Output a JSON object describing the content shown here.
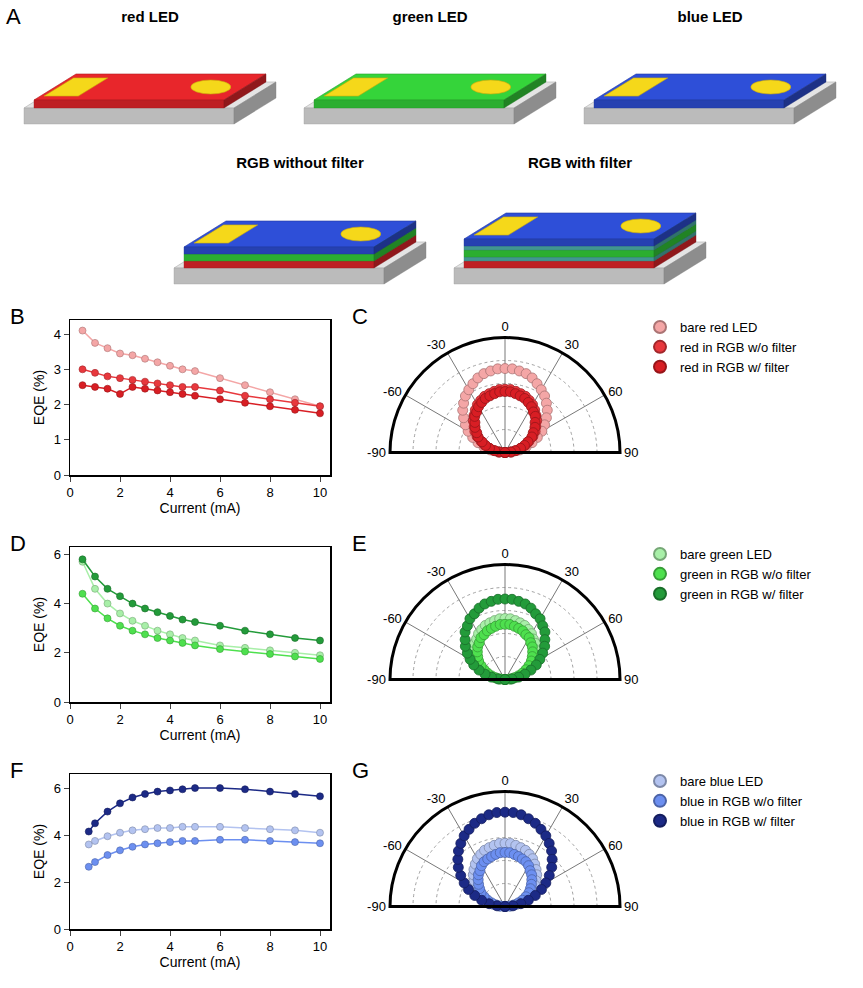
{
  "panel_a": {
    "letter": "A",
    "devices": [
      {
        "label": "red LED",
        "layers": [
          "red"
        ]
      },
      {
        "label": "green LED",
        "layers": [
          "green"
        ]
      },
      {
        "label": "blue LED",
        "layers": [
          "blue"
        ]
      },
      {
        "label": "RGB without filter",
        "layers": [
          "red",
          "green",
          "blue"
        ]
      },
      {
        "label": "RGB with filter",
        "layers": [
          "red",
          "filter",
          "green",
          "filter",
          "blue"
        ]
      }
    ]
  },
  "chart_data": [
    {
      "panel": "B",
      "type": "line",
      "xlabel": "Current (mA)",
      "ylabel": "EQE (%)",
      "x": [
        0.5,
        1,
        1.5,
        2,
        2.5,
        3,
        3.5,
        4,
        4.5,
        5,
        6,
        7,
        8,
        9,
        10
      ],
      "xlim": [
        0,
        10.4
      ],
      "xticks": [
        0,
        2,
        4,
        6,
        8,
        10
      ],
      "ylim": [
        0,
        4.4
      ],
      "yticks": [
        0,
        1,
        2,
        3,
        4
      ],
      "grid": false,
      "marker": "circle",
      "series": [
        {
          "color": "#f4a6a6",
          "values": [
            4.1,
            3.75,
            3.6,
            3.45,
            3.4,
            3.3,
            3.2,
            3.1,
            3.0,
            2.95,
            2.75,
            2.55,
            2.35,
            2.15,
            1.95
          ]
        },
        {
          "color": "#e8383d",
          "values": [
            3.0,
            2.9,
            2.8,
            2.75,
            2.7,
            2.65,
            2.6,
            2.55,
            2.5,
            2.5,
            2.4,
            2.25,
            2.15,
            2.05,
            1.95
          ]
        },
        {
          "color": "#d81e24",
          "values": [
            2.55,
            2.5,
            2.45,
            2.3,
            2.5,
            2.45,
            2.4,
            2.35,
            2.3,
            2.25,
            2.15,
            2.05,
            1.95,
            1.85,
            1.75
          ]
        }
      ]
    },
    {
      "panel": "C",
      "type": "polar",
      "x": [
        -90,
        -85,
        -80,
        -75,
        -70,
        -65,
        -60,
        -55,
        -50,
        -45,
        -40,
        -35,
        -30,
        -25,
        -20,
        -15,
        -10,
        -5,
        0,
        5,
        10,
        15,
        20,
        25,
        30,
        35,
        40,
        45,
        50,
        55,
        60,
        65,
        70,
        75,
        80,
        85,
        90
      ],
      "xlim": [
        -90,
        90
      ],
      "xticks": [
        -90,
        -60,
        -30,
        0,
        30,
        60,
        90
      ],
      "ylim": [
        0,
        10
      ],
      "yticks": [
        0,
        2,
        4,
        6,
        8,
        10
      ],
      "tick_labels": "x",
      "grid": true,
      "legend": "upper right",
      "marker": "circle",
      "series": [
        {
          "name": "bare red LED",
          "color": "#f4a6a6",
          "values": [
            0,
            0.6,
            1.3,
            1.9,
            2.5,
            3.1,
            3.7,
            4.2,
            4.7,
            5.2,
            5.6,
            6.0,
            6.3,
            6.6,
            6.9,
            7.1,
            7.2,
            7.3,
            7.3,
            7.3,
            7.2,
            7.1,
            6.9,
            6.6,
            6.3,
            6.0,
            5.6,
            5.2,
            4.7,
            4.2,
            3.7,
            3.1,
            2.5,
            1.9,
            1.3,
            0.6,
            0
          ]
        },
        {
          "name": "red in RGB w/o filter",
          "color": "#e8383d",
          "values": [
            0,
            0.5,
            1.0,
            1.4,
            1.9,
            2.3,
            2.8,
            3.2,
            3.5,
            3.9,
            4.2,
            4.5,
            4.8,
            5.0,
            5.2,
            5.3,
            5.4,
            5.5,
            5.5,
            5.5,
            5.4,
            5.3,
            5.2,
            5.0,
            4.8,
            4.5,
            4.2,
            3.9,
            3.5,
            3.2,
            2.8,
            2.3,
            1.9,
            1.4,
            1.0,
            0.5,
            0
          ]
        },
        {
          "name": "red in RGB w/ filter",
          "color": "#d81e24",
          "values": [
            0,
            0.5,
            0.9,
            1.4,
            1.8,
            2.2,
            2.7,
            3.0,
            3.4,
            3.7,
            4.1,
            4.3,
            4.6,
            4.8,
            5.0,
            5.1,
            5.2,
            5.3,
            5.3,
            5.3,
            5.2,
            5.1,
            5.0,
            4.8,
            4.6,
            4.3,
            4.1,
            3.7,
            3.4,
            3.0,
            2.7,
            2.2,
            1.8,
            1.4,
            0.9,
            0.5,
            0
          ]
        }
      ]
    },
    {
      "panel": "D",
      "type": "line",
      "xlabel": "Current (mA)",
      "ylabel": "EQE (%)",
      "x": [
        0.5,
        1,
        1.5,
        2,
        2.5,
        3,
        3.5,
        4,
        4.5,
        5,
        6,
        7,
        8,
        9,
        10
      ],
      "xlim": [
        0,
        10.4
      ],
      "xticks": [
        0,
        2,
        4,
        6,
        8,
        10
      ],
      "ylim": [
        0,
        6.3
      ],
      "yticks": [
        0,
        2,
        4,
        6
      ],
      "grid": false,
      "marker": "circle",
      "series": [
        {
          "color": "#a8efa8",
          "values": [
            5.7,
            4.6,
            4.0,
            3.6,
            3.3,
            3.1,
            2.9,
            2.75,
            2.6,
            2.5,
            2.3,
            2.2,
            2.1,
            2.0,
            1.9
          ]
        },
        {
          "color": "#4ee04e",
          "values": [
            4.4,
            3.8,
            3.4,
            3.1,
            2.9,
            2.75,
            2.6,
            2.5,
            2.4,
            2.3,
            2.15,
            2.05,
            1.95,
            1.85,
            1.75
          ]
        },
        {
          "color": "#239b3a",
          "values": [
            5.8,
            5.1,
            4.6,
            4.3,
            4.0,
            3.8,
            3.65,
            3.5,
            3.35,
            3.25,
            3.1,
            2.9,
            2.75,
            2.6,
            2.5
          ]
        }
      ]
    },
    {
      "panel": "E",
      "type": "polar",
      "x": [
        -90,
        -85,
        -80,
        -75,
        -70,
        -65,
        -60,
        -55,
        -50,
        -45,
        -40,
        -35,
        -30,
        -25,
        -20,
        -15,
        -10,
        -5,
        0,
        5,
        10,
        15,
        20,
        25,
        30,
        35,
        40,
        45,
        50,
        55,
        60,
        65,
        70,
        75,
        80,
        85,
        90
      ],
      "xlim": [
        -90,
        90
      ],
      "xticks": [
        -90,
        -60,
        -30,
        0,
        30,
        60,
        90
      ],
      "ylim": [
        0,
        10
      ],
      "yticks": [
        0,
        2,
        4,
        6,
        8,
        10
      ],
      "tick_labels": "x",
      "grid": true,
      "legend": "upper right",
      "marker": "circle",
      "series": [
        {
          "name": "bare green LED",
          "color": "#a8efa8",
          "values": [
            0,
            0.5,
            0.9,
            1.4,
            1.8,
            2.2,
            2.7,
            3.0,
            3.4,
            3.7,
            4.1,
            4.3,
            4.6,
            4.8,
            5.0,
            5.1,
            5.2,
            5.3,
            5.3,
            5.3,
            5.2,
            5.1,
            5.0,
            4.8,
            4.6,
            4.3,
            4.1,
            3.7,
            3.4,
            3.0,
            2.7,
            2.2,
            1.8,
            1.4,
            0.9,
            0.5,
            0
          ]
        },
        {
          "name": "green in RGB w/o filter",
          "color": "#4ee04e",
          "values": [
            0,
            0.4,
            0.8,
            1.2,
            1.6,
            2.0,
            2.4,
            2.8,
            3.1,
            3.4,
            3.7,
            3.9,
            4.2,
            4.3,
            4.5,
            4.6,
            4.7,
            4.8,
            4.8,
            4.8,
            4.7,
            4.6,
            4.5,
            4.3,
            4.2,
            3.9,
            3.7,
            3.4,
            3.1,
            2.8,
            2.4,
            2.0,
            1.6,
            1.2,
            0.8,
            0.4,
            0
          ]
        },
        {
          "name": "green in RGB w/ filter",
          "color": "#239b3a",
          "values": [
            0,
            0.6,
            1.2,
            1.8,
            2.4,
            3.0,
            3.5,
            4.0,
            4.5,
            4.9,
            5.4,
            5.7,
            6.1,
            6.3,
            6.6,
            6.8,
            6.9,
            7.0,
            7.0,
            7.0,
            6.9,
            6.8,
            6.6,
            6.3,
            6.1,
            5.7,
            5.4,
            4.9,
            4.5,
            4.0,
            3.5,
            3.0,
            2.4,
            1.8,
            1.2,
            0.6,
            0
          ]
        }
      ]
    },
    {
      "panel": "F",
      "type": "line",
      "xlabel": "Current (mA)",
      "ylabel": "EQE (%)",
      "x": [
        0.75,
        1,
        1.5,
        2,
        2.5,
        3,
        3.5,
        4,
        4.5,
        5,
        6,
        7,
        8,
        9,
        10
      ],
      "xlim": [
        0,
        10.4
      ],
      "xticks": [
        0,
        2,
        4,
        6,
        8,
        10
      ],
      "ylim": [
        0,
        6.6
      ],
      "yticks": [
        0,
        2,
        4,
        6
      ],
      "grid": false,
      "marker": "circle",
      "series": [
        {
          "color": "#b3c3f0",
          "values": [
            3.6,
            3.75,
            3.95,
            4.1,
            4.2,
            4.25,
            4.3,
            4.3,
            4.35,
            4.35,
            4.35,
            4.3,
            4.25,
            4.2,
            4.1
          ]
        },
        {
          "color": "#6c8ff0",
          "values": [
            2.65,
            2.85,
            3.15,
            3.35,
            3.5,
            3.6,
            3.65,
            3.7,
            3.75,
            3.75,
            3.8,
            3.8,
            3.75,
            3.7,
            3.65
          ]
        },
        {
          "color": "#1c2a86",
          "values": [
            4.15,
            4.5,
            5.0,
            5.35,
            5.6,
            5.75,
            5.85,
            5.9,
            5.95,
            6.0,
            6.0,
            5.95,
            5.85,
            5.75,
            5.65
          ]
        }
      ]
    },
    {
      "panel": "G",
      "type": "polar",
      "x": [
        -90,
        -85,
        -80,
        -75,
        -70,
        -65,
        -60,
        -55,
        -50,
        -45,
        -40,
        -35,
        -30,
        -25,
        -20,
        -15,
        -10,
        -5,
        0,
        5,
        10,
        15,
        20,
        25,
        30,
        35,
        40,
        45,
        50,
        55,
        60,
        65,
        70,
        75,
        80,
        85,
        90
      ],
      "xlim": [
        -90,
        90
      ],
      "xticks": [
        -90,
        -60,
        -30,
        0,
        30,
        60,
        90
      ],
      "ylim": [
        0,
        10
      ],
      "yticks": [
        0,
        2,
        4,
        6,
        8,
        10
      ],
      "tick_labels": "x",
      "grid": true,
      "legend": "upper right",
      "marker": "circle",
      "series": [
        {
          "name": "bare blue LED",
          "color": "#b3c3f0",
          "values": [
            0,
            0.5,
            1.0,
            1.4,
            1.9,
            2.3,
            2.8,
            3.2,
            3.5,
            3.9,
            4.2,
            4.5,
            4.8,
            5.0,
            5.2,
            5.3,
            5.4,
            5.5,
            5.5,
            5.5,
            5.4,
            5.3,
            5.2,
            5.0,
            4.8,
            4.5,
            4.2,
            3.9,
            3.5,
            3.2,
            2.8,
            2.3,
            1.9,
            1.4,
            1.0,
            0.5,
            0
          ]
        },
        {
          "name": "blue in RGB w/o filter",
          "color": "#6c8ff0",
          "values": [
            0,
            0.4,
            0.8,
            1.2,
            1.6,
            2.0,
            2.4,
            2.7,
            3.0,
            3.3,
            3.6,
            3.8,
            4.1,
            4.3,
            4.4,
            4.5,
            4.6,
            4.7,
            4.7,
            4.7,
            4.6,
            4.5,
            4.4,
            4.3,
            4.1,
            3.8,
            3.6,
            3.3,
            3.0,
            2.7,
            2.4,
            2.0,
            1.6,
            1.2,
            0.8,
            0.4,
            0
          ]
        },
        {
          "name": "blue in RGB w/ filter",
          "color": "#1c2a86",
          "values": [
            0,
            0.7,
            1.4,
            2.1,
            2.8,
            3.5,
            4.1,
            4.7,
            5.3,
            5.8,
            6.3,
            6.7,
            7.1,
            7.4,
            7.7,
            7.9,
            8.1,
            8.2,
            8.2,
            8.2,
            8.1,
            7.9,
            7.7,
            7.4,
            7.1,
            6.7,
            6.3,
            5.8,
            5.3,
            4.7,
            4.1,
            3.5,
            2.8,
            2.1,
            1.4,
            0.7,
            0
          ]
        }
      ]
    }
  ]
}
